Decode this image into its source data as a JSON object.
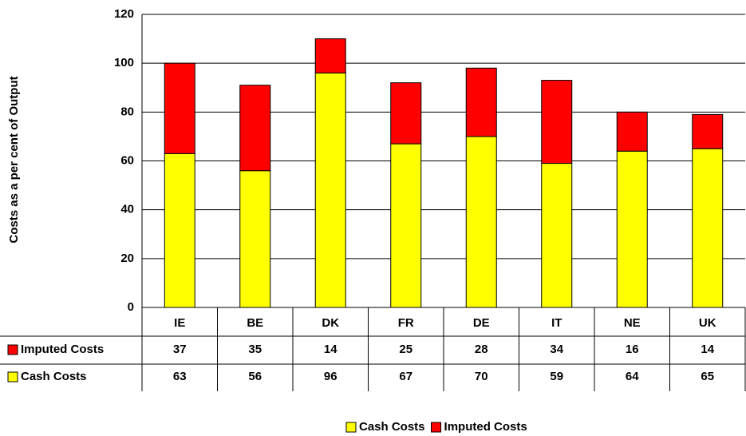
{
  "chart_data": {
    "type": "bar",
    "stacked": true,
    "y_label": "Costs as a per cent of Output",
    "categories": [
      "IE",
      "BE",
      "DK",
      "FR",
      "DE",
      "IT",
      "NE",
      "UK"
    ],
    "series": [
      {
        "name": "Cash Costs",
        "color": "#ffff00",
        "values": [
          63,
          56,
          96,
          67,
          70,
          59,
          64,
          65
        ]
      },
      {
        "name": "Imputed Costs",
        "color": "#ff0000",
        "values": [
          37,
          35,
          14,
          25,
          28,
          34,
          16,
          14
        ]
      }
    ],
    "ylim": [
      0,
      120
    ],
    "yticks": [
      0,
      20,
      40,
      60,
      80,
      100,
      120
    ],
    "grid": true,
    "legend": "bottom"
  }
}
